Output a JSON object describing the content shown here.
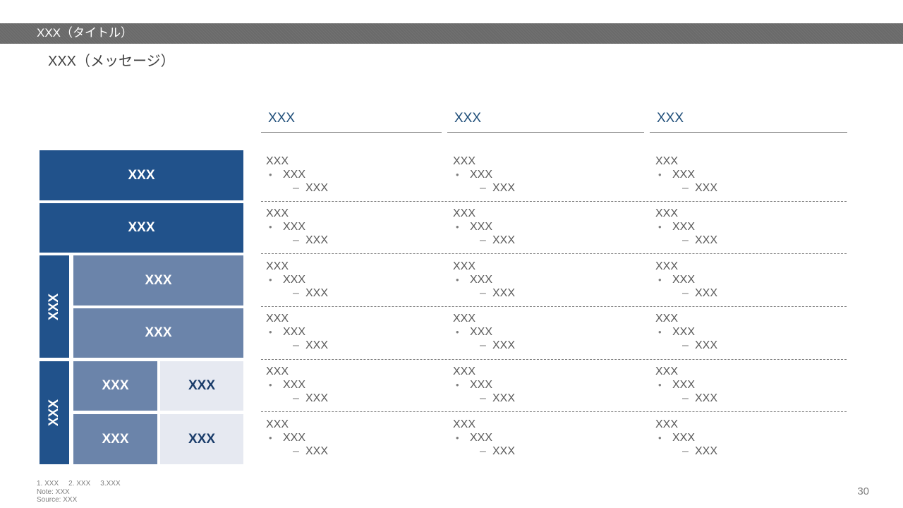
{
  "slide": {
    "title": "XXX（タイトル）",
    "message": "XXX（メッセージ）",
    "page_number": "30"
  },
  "columns": [
    "XXX",
    "XXX",
    "XXX"
  ],
  "left_blocks": {
    "row1": "XXX",
    "row2": "XXX",
    "group1_label": "XXX",
    "row3": "XXX",
    "row4": "XXX",
    "group2_label": "XXX",
    "row5_a": "XXX",
    "row5_b": "XXX",
    "row6_a": "XXX",
    "row6_b": "XXX"
  },
  "cell": {
    "level1": "XXX",
    "bullet": "•",
    "level2": "XXX",
    "dash": "–",
    "level3": "XXX"
  },
  "footer": {
    "footnotes": [
      "1. XXX",
      "2. XXX",
      "3.XXX"
    ],
    "note": "Note: XXX",
    "source": "Source: XXX"
  },
  "colors": {
    "title_bar": "#6a6a6a",
    "dark_block": "#21528b",
    "mid_block": "#6b84aa",
    "light_block": "#e6e9f1",
    "header_text": "#1f4e79"
  }
}
